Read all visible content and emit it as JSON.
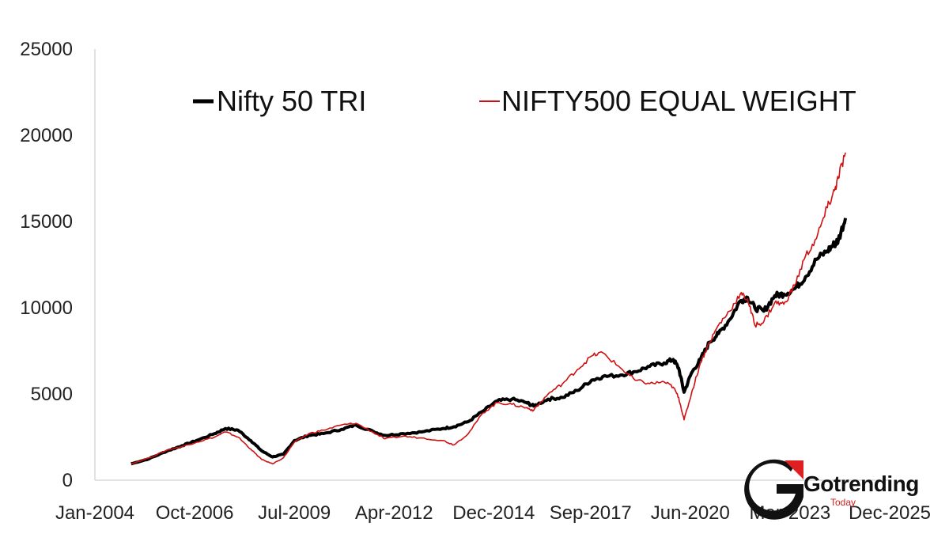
{
  "chart_data": {
    "type": "line",
    "title": "",
    "xlabel": "",
    "ylabel": "",
    "x_tick_labels": [
      "Jan-2004",
      "Oct-2006",
      "Jul-2009",
      "Apr-2012",
      "Dec-2014",
      "Sep-2017",
      "Jun-2020",
      "Mar-2023",
      "Dec-2025"
    ],
    "x_tick_values": [
      2004.0,
      2006.75,
      2009.5,
      2012.25,
      2015.0,
      2017.67,
      2020.42,
      2023.17,
      2025.92
    ],
    "xlim": [
      2004.0,
      2025.92
    ],
    "y_ticks": [
      0,
      5000,
      10000,
      15000,
      20000,
      25000
    ],
    "ylim": [
      0,
      25000
    ],
    "grid": false,
    "legend_position": "top",
    "series": [
      {
        "name": "Nifty 50 TRI",
        "color": "#000000",
        "x": [
          2005.0,
          2005.5,
          2006.0,
          2006.4,
          2006.8,
          2007.3,
          2007.6,
          2007.95,
          2008.3,
          2008.6,
          2008.9,
          2009.2,
          2009.5,
          2009.9,
          2010.3,
          2010.8,
          2011.2,
          2011.7,
          2012.0,
          2012.5,
          2013.0,
          2013.6,
          2013.9,
          2014.3,
          2014.7,
          2015.1,
          2015.5,
          2015.9,
          2016.1,
          2016.5,
          2016.9,
          2017.3,
          2017.7,
          2018.0,
          2018.5,
          2018.9,
          2019.3,
          2019.7,
          2019.95,
          2020.1,
          2020.25,
          2020.45,
          2020.7,
          2020.95,
          2021.2,
          2021.5,
          2021.8,
          2022.0,
          2022.2,
          2022.45,
          2022.75,
          2023.0,
          2023.3,
          2023.6,
          2023.9,
          2024.2,
          2024.4,
          2024.5,
          2024.7
        ],
        "y": [
          950,
          1250,
          1700,
          2000,
          2300,
          2700,
          3000,
          2900,
          2300,
          1700,
          1350,
          1500,
          2300,
          2600,
          2700,
          2950,
          3200,
          2800,
          2600,
          2700,
          2800,
          3000,
          3100,
          3400,
          4000,
          4600,
          4700,
          4500,
          4300,
          4700,
          4800,
          5200,
          5800,
          6000,
          6100,
          6300,
          6600,
          6800,
          7000,
          6500,
          5100,
          6200,
          7000,
          8000,
          8500,
          9300,
          10400,
          10600,
          10000,
          9800,
          10700,
          10800,
          11100,
          11800,
          12800,
          13300,
          13700,
          13900,
          15200
        ]
      },
      {
        "name": "NIFTY500 EQUAL WEIGHT",
        "color": "#d01010",
        "x": [
          2005.0,
          2005.5,
          2006.0,
          2006.4,
          2006.8,
          2007.3,
          2007.6,
          2007.95,
          2008.3,
          2008.6,
          2008.9,
          2009.2,
          2009.5,
          2009.9,
          2010.3,
          2010.8,
          2011.2,
          2011.7,
          2012.0,
          2012.5,
          2013.0,
          2013.6,
          2013.9,
          2014.3,
          2014.7,
          2015.1,
          2015.5,
          2015.9,
          2016.1,
          2016.5,
          2016.9,
          2017.3,
          2017.7,
          2018.0,
          2018.5,
          2018.9,
          2019.3,
          2019.7,
          2019.95,
          2020.1,
          2020.25,
          2020.45,
          2020.7,
          2020.95,
          2021.2,
          2021.5,
          2021.8,
          2022.0,
          2022.2,
          2022.45,
          2022.75,
          2023.0,
          2023.3,
          2023.6,
          2023.9,
          2024.2,
          2024.4,
          2024.5,
          2024.7
        ],
        "y": [
          950,
          1300,
          1750,
          1950,
          2200,
          2500,
          2800,
          2500,
          1800,
          1200,
          950,
          1300,
          2200,
          2700,
          2900,
          3200,
          3300,
          2750,
          2400,
          2550,
          2450,
          2300,
          2050,
          2700,
          3900,
          4500,
          4400,
          4200,
          4050,
          5000,
          5600,
          6400,
          7200,
          7400,
          6500,
          5800,
          5600,
          5700,
          5400,
          4800,
          3500,
          5000,
          6800,
          8000,
          9000,
          9800,
          10800,
          10500,
          9000,
          9200,
          10300,
          10200,
          11300,
          13000,
          14000,
          15800,
          16800,
          17500,
          19000
        ]
      }
    ]
  },
  "watermark": {
    "brand": "Gotrending",
    "sub": "Today",
    "logo_letter": "G",
    "accent": "#e02020"
  }
}
